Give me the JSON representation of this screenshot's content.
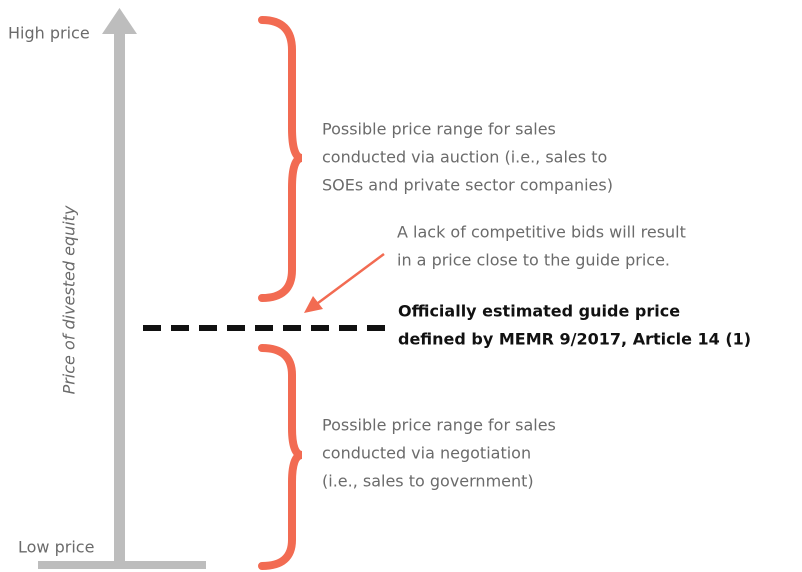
{
  "axis": {
    "high_label": "High price",
    "low_label": "Low price",
    "title": "Price of divested equity"
  },
  "auction_range": {
    "lines": [
      "Possible price range for sales",
      "conducted via auction (i.e., sales to",
      "SOEs and private sector companies)"
    ]
  },
  "annotation": {
    "lines": [
      "A lack of competitive bids will result",
      "in a price close to the guide price."
    ]
  },
  "guide_price": {
    "lines": [
      "Officially estimated guide price",
      "defined by MEMR 9/2017, Article 14 (1)"
    ]
  },
  "negotiation_range": {
    "lines": [
      "Possible price range for sales",
      "conducted via negotiation",
      "(i.e., sales to government)"
    ]
  }
}
